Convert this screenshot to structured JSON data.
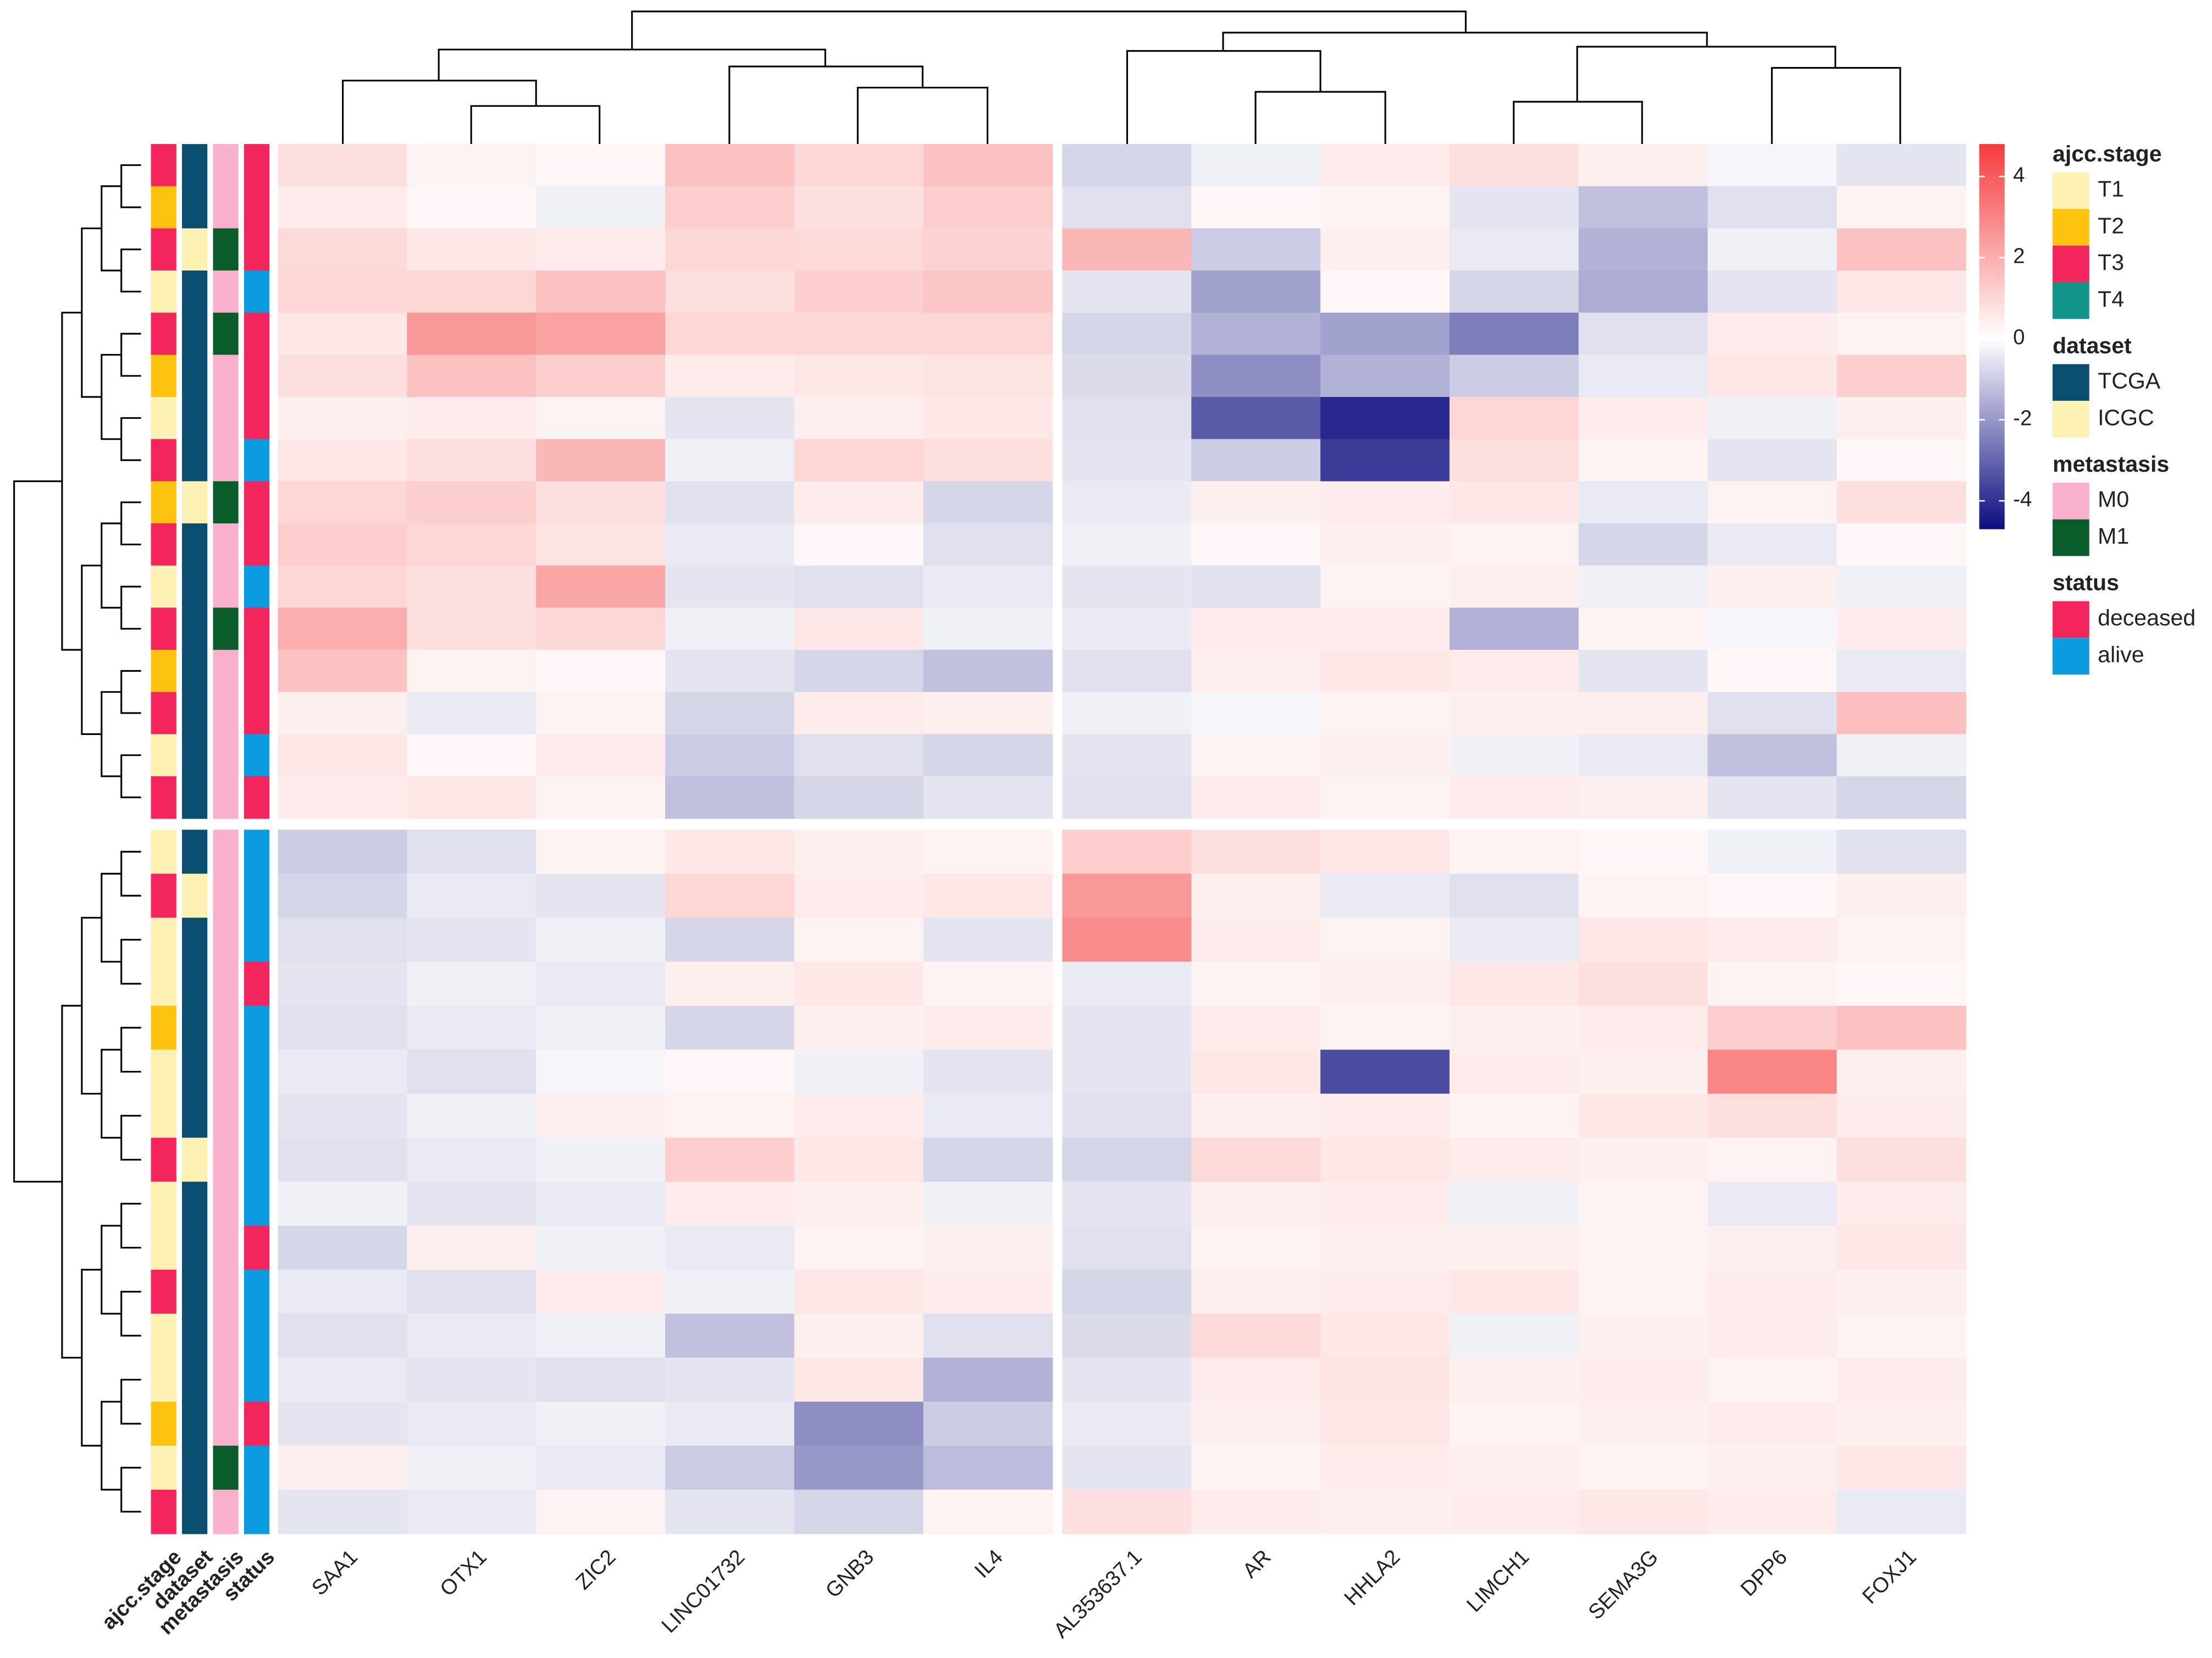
{
  "chart_data": {
    "type": "heatmap",
    "column_clusters": [
      [
        "SAA1",
        "OTX1",
        "ZIC2",
        "LINC01732",
        "GNB3",
        "IL4"
      ],
      [
        "AL353637.1",
        "AR",
        "HHLA2",
        "LIMCH1",
        "SEMA3G",
        "DPP6",
        "FOXJ1"
      ]
    ],
    "row_clusters": [
      {
        "values": [
          [
            0.8,
            0.3,
            0.2,
            1.5,
            1.0,
            1.5,
            -0.8,
            -0.3,
            0.5,
            0.8,
            0.4,
            -0.2,
            -0.5
          ],
          [
            0.5,
            0.2,
            -0.3,
            1.2,
            0.8,
            1.2,
            -0.6,
            0.2,
            0.3,
            -0.5,
            -1.2,
            -0.6,
            0.3
          ],
          [
            0.9,
            0.6,
            0.5,
            1.0,
            0.9,
            1.1,
            1.8,
            -1.0,
            0.4,
            -0.4,
            -1.5,
            -0.3,
            1.5
          ],
          [
            1.0,
            1.0,
            1.5,
            0.8,
            1.2,
            1.4,
            -0.5,
            -1.8,
            0.2,
            -0.8,
            -1.6,
            -0.5,
            0.6
          ],
          [
            0.6,
            2.5,
            2.3,
            1.0,
            1.0,
            1.0,
            -0.8,
            -1.5,
            -1.8,
            -2.5,
            -0.6,
            0.5,
            0.3
          ],
          [
            0.8,
            1.5,
            1.2,
            0.5,
            0.6,
            0.7,
            -0.7,
            -2.2,
            -1.5,
            -1.0,
            -0.4,
            0.6,
            1.2
          ],
          [
            0.4,
            0.5,
            0.3,
            -0.5,
            0.4,
            0.6,
            -0.6,
            -3.2,
            -4.2,
            1.0,
            0.5,
            -0.3,
            0.4
          ],
          [
            0.6,
            0.8,
            1.8,
            -0.3,
            1.0,
            0.8,
            -0.5,
            -1.0,
            -3.8,
            0.8,
            0.3,
            -0.5,
            0.2
          ],
          [
            1.0,
            1.2,
            0.8,
            -0.6,
            0.5,
            -0.8,
            -0.4,
            0.4,
            0.5,
            0.6,
            -0.4,
            0.3,
            0.8
          ],
          [
            1.2,
            1.0,
            0.7,
            -0.4,
            0.2,
            -0.6,
            -0.3,
            0.2,
            0.4,
            0.3,
            -0.8,
            -0.4,
            0.2
          ],
          [
            1.0,
            0.8,
            2.2,
            -0.5,
            -0.6,
            -0.4,
            -0.5,
            -0.6,
            0.3,
            0.4,
            -0.3,
            0.4,
            -0.3
          ],
          [
            2.0,
            0.8,
            1.0,
            -0.3,
            0.6,
            -0.3,
            -0.4,
            0.5,
            0.5,
            -1.5,
            0.3,
            -0.2,
            0.5
          ],
          [
            1.5,
            0.3,
            0.2,
            -0.5,
            -0.8,
            -1.2,
            -0.6,
            0.4,
            0.6,
            0.5,
            -0.5,
            0.2,
            -0.4
          ],
          [
            0.4,
            -0.4,
            0.3,
            -0.8,
            0.5,
            0.4,
            -0.3,
            -0.2,
            0.3,
            0.4,
            0.4,
            -0.6,
            1.6
          ],
          [
            0.6,
            0.2,
            0.5,
            -1.0,
            -0.6,
            -0.8,
            -0.5,
            0.3,
            0.4,
            -0.3,
            -0.4,
            -1.2,
            -0.3
          ],
          [
            0.5,
            0.6,
            0.3,
            -1.2,
            -0.8,
            -0.5,
            -0.6,
            0.5,
            0.3,
            0.5,
            0.4,
            -0.5,
            -0.8
          ]
        ]
      },
      {
        "values": [
          [
            -1.0,
            -0.6,
            0.3,
            0.6,
            0.4,
            0.3,
            1.2,
            0.8,
            0.6,
            0.3,
            0.2,
            -0.3,
            -0.6
          ],
          [
            -0.8,
            -0.4,
            -0.5,
            1.0,
            0.5,
            0.6,
            2.5,
            0.4,
            -0.4,
            -0.6,
            0.3,
            0.2,
            0.4
          ],
          [
            -0.6,
            -0.5,
            -0.3,
            -0.8,
            0.3,
            -0.5,
            2.8,
            0.5,
            0.3,
            -0.4,
            0.6,
            0.5,
            0.3
          ],
          [
            -0.5,
            -0.3,
            -0.4,
            0.4,
            0.6,
            0.3,
            -0.4,
            0.3,
            0.4,
            0.6,
            0.8,
            0.3,
            0.2
          ],
          [
            -0.6,
            -0.4,
            -0.3,
            -0.8,
            0.4,
            0.5,
            -0.5,
            0.5,
            0.3,
            0.4,
            0.5,
            1.2,
            1.5
          ],
          [
            -0.4,
            -0.6,
            -0.2,
            0.2,
            -0.3,
            -0.5,
            -0.5,
            0.6,
            -3.5,
            0.5,
            0.4,
            3.0,
            0.4
          ],
          [
            -0.5,
            -0.3,
            0.4,
            0.3,
            0.5,
            -0.4,
            -0.6,
            0.4,
            0.5,
            0.3,
            0.6,
            0.8,
            0.5
          ],
          [
            -0.6,
            -0.4,
            -0.3,
            1.2,
            0.6,
            -0.8,
            -0.8,
            0.9,
            0.6,
            0.5,
            0.4,
            0.3,
            0.8
          ],
          [
            -0.3,
            -0.5,
            -0.4,
            0.5,
            0.4,
            -0.3,
            -0.5,
            0.4,
            0.5,
            -0.3,
            0.3,
            -0.4,
            0.5
          ],
          [
            -0.8,
            0.4,
            -0.3,
            -0.4,
            0.3,
            0.4,
            -0.6,
            0.3,
            0.4,
            0.4,
            0.3,
            0.4,
            0.6
          ],
          [
            -0.4,
            -0.6,
            0.5,
            -0.3,
            0.6,
            0.5,
            -0.8,
            0.4,
            0.5,
            0.6,
            0.3,
            0.5,
            0.4
          ],
          [
            -0.6,
            -0.4,
            -0.3,
            -1.2,
            0.4,
            -0.6,
            -0.7,
            0.9,
            0.6,
            -0.3,
            0.4,
            0.5,
            0.3
          ],
          [
            -0.4,
            -0.5,
            -0.6,
            -0.5,
            0.6,
            -1.5,
            -0.5,
            0.5,
            0.7,
            0.4,
            0.5,
            0.3,
            0.5
          ],
          [
            -0.5,
            -0.4,
            -0.3,
            -0.4,
            -2.2,
            -1.0,
            -0.4,
            0.4,
            0.6,
            0.3,
            0.4,
            0.5,
            0.4
          ],
          [
            0.4,
            -0.3,
            -0.4,
            -1.0,
            -2.0,
            -1.3,
            -0.5,
            0.3,
            0.5,
            0.4,
            0.3,
            0.4,
            0.6
          ],
          [
            -0.5,
            -0.4,
            0.3,
            -0.5,
            -0.8,
            0.3,
            0.8,
            0.5,
            0.4,
            0.5,
            0.6,
            0.5,
            -0.4
          ]
        ]
      }
    ],
    "zlim": [
      -4.7,
      4.8
    ],
    "zticks": [
      -4,
      -2,
      0,
      2,
      4
    ],
    "colors": [
      "#0d0d80",
      "#ffffff",
      "#f53c3c"
    ],
    "annotations": [
      {
        "name": "ajcc.stage",
        "levels": [
          "T1",
          "T2",
          "T3",
          "T4"
        ],
        "colors": [
          "#fdf2b3",
          "#fdc30f",
          "#f4245d",
          "#11948a"
        ],
        "values": [
          "T3",
          "T2",
          "T3",
          "T1",
          "T3",
          "T2",
          "T1",
          "T3",
          "T2",
          "T3",
          "T1",
          "T3",
          "T2",
          "T3",
          "T1",
          "T3",
          "T1",
          "T3",
          "T1",
          "T1",
          "T2",
          "T1",
          "T1",
          "T3",
          "T1",
          "T1",
          "T3",
          "T1",
          "T1",
          "T2",
          "T1",
          "T3"
        ]
      },
      {
        "name": "dataset",
        "levels": [
          "TCGA",
          "ICGC"
        ],
        "colors": [
          "#0a4f72",
          "#fdf2b3"
        ],
        "values": [
          "TCGA",
          "TCGA",
          "ICGC",
          "TCGA",
          "TCGA",
          "TCGA",
          "TCGA",
          "TCGA",
          "ICGC",
          "TCGA",
          "TCGA",
          "TCGA",
          "TCGA",
          "TCGA",
          "TCGA",
          "TCGA",
          "TCGA",
          "ICGC",
          "TCGA",
          "TCGA",
          "TCGA",
          "TCGA",
          "TCGA",
          "ICGC",
          "TCGA",
          "TCGA",
          "TCGA",
          "TCGA",
          "TCGA",
          "TCGA",
          "TCGA",
          "TCGA"
        ]
      },
      {
        "name": "metastasis",
        "levels": [
          "M0",
          "M1"
        ],
        "colors": [
          "#f9b0cd",
          "#0a5c2a"
        ],
        "values": [
          "M0",
          "M0",
          "M1",
          "M0",
          "M1",
          "M0",
          "M0",
          "M0",
          "M1",
          "M0",
          "M0",
          "M1",
          "M0",
          "M0",
          "M0",
          "M0",
          "M0",
          "M0",
          "M0",
          "M0",
          "M0",
          "M0",
          "M0",
          "M0",
          "M0",
          "M0",
          "M0",
          "M0",
          "M0",
          "M0",
          "M1",
          "M0"
        ]
      },
      {
        "name": "status",
        "levels": [
          "deceased",
          "alive"
        ],
        "colors": [
          "#f4245d",
          "#0b9be0"
        ],
        "values": [
          "deceased",
          "deceased",
          "deceased",
          "alive",
          "deceased",
          "deceased",
          "deceased",
          "alive",
          "deceased",
          "deceased",
          "alive",
          "deceased",
          "deceased",
          "deceased",
          "alive",
          "deceased",
          "alive",
          "alive",
          "alive",
          "deceased",
          "alive",
          "alive",
          "alive",
          "alive",
          "alive",
          "deceased",
          "alive",
          "alive",
          "alive",
          "deceased",
          "alive",
          "alive"
        ]
      }
    ]
  }
}
